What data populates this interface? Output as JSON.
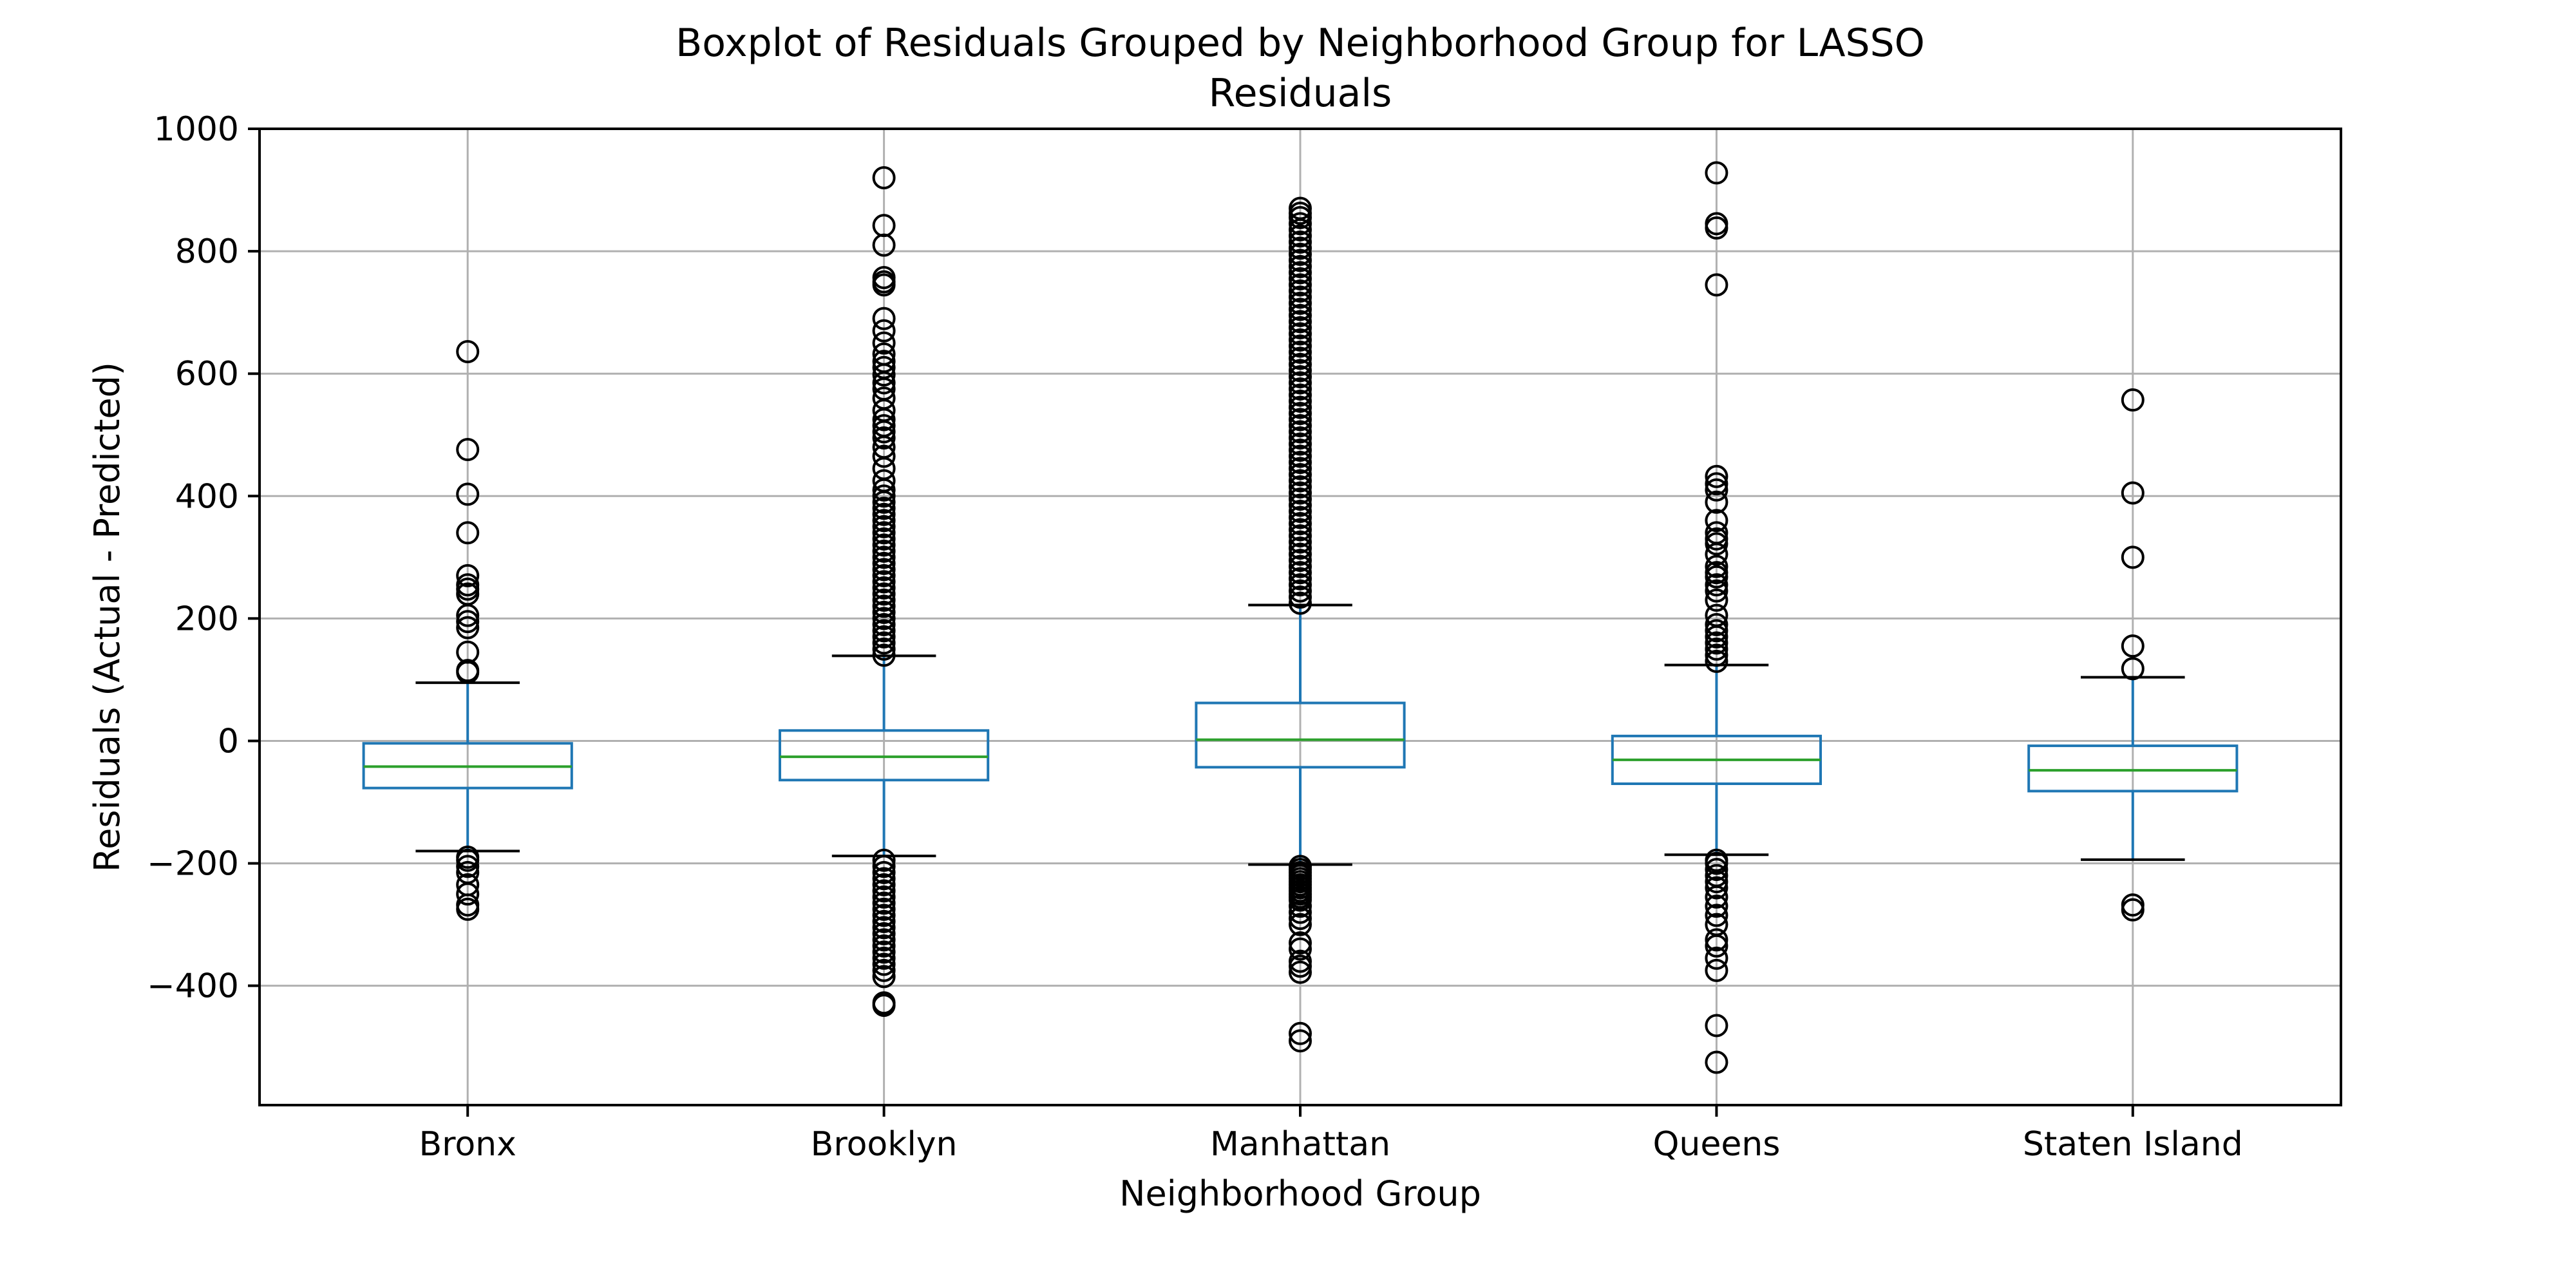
{
  "chart_data": {
    "type": "box",
    "title": "Boxplot of Residuals Grouped by Neighborhood Group for LASSO",
    "subtitle": "Residuals",
    "xlabel": "Neighborhood Group",
    "ylabel": "Residuals (Actual - Predicted)",
    "ylim": [
      -595,
      1000
    ],
    "yticks": [
      -400,
      -200,
      0,
      200,
      400,
      600,
      800,
      1000
    ],
    "ytick_labels": [
      "−400",
      "−200",
      "0",
      "200",
      "400",
      "600",
      "800",
      "1000"
    ],
    "grid": true,
    "colors": {
      "box": "#1f77b4",
      "median": "#2ca02c",
      "whisker": "#1f77b4",
      "cap": "#000000",
      "flier": "#000000"
    },
    "categories": [
      "Bronx",
      "Brooklyn",
      "Manhattan",
      "Queens",
      "Staten Island"
    ],
    "boxes": [
      {
        "name": "Bronx",
        "whisker_low": -180,
        "q1": -77,
        "median": -42,
        "q3": -4,
        "whisker_high": 95,
        "fliers": [
          636,
          476,
          403,
          340,
          270,
          255,
          248,
          240,
          205,
          195,
          185,
          145,
          115,
          112,
          -190,
          -195,
          -205,
          -215,
          -235,
          -250,
          -268,
          -275
        ]
      },
      {
        "name": "Brooklyn",
        "whisker_low": -188,
        "q1": -64,
        "median": -26,
        "q3": 17,
        "whisker_high": 139,
        "fliers": [
          920,
          842,
          810,
          757,
          750,
          745,
          690,
          670,
          650,
          632,
          620,
          610,
          598,
          585,
          575,
          560,
          540,
          525,
          515,
          505,
          495,
          480,
          465,
          445,
          425,
          410,
          400,
          390,
          380,
          370,
          360,
          350,
          340,
          330,
          320,
          310,
          300,
          290,
          280,
          270,
          260,
          250,
          240,
          230,
          220,
          210,
          200,
          190,
          180,
          170,
          160,
          150,
          140,
          -195,
          -205,
          -215,
          -225,
          -235,
          -245,
          -255,
          -265,
          -275,
          -285,
          -295,
          -305,
          -315,
          -325,
          -335,
          -345,
          -355,
          -365,
          -375,
          -385,
          -428,
          -432
        ]
      },
      {
        "name": "Manhattan",
        "whisker_low": -202,
        "q1": -43,
        "median": 2,
        "q3": 62,
        "whisker_high": 222,
        "fliers": [
          870,
          862,
          855,
          845,
          835,
          825,
          815,
          805,
          795,
          785,
          775,
          765,
          755,
          745,
          735,
          725,
          715,
          705,
          695,
          685,
          675,
          665,
          655,
          645,
          635,
          625,
          615,
          605,
          595,
          585,
          575,
          565,
          555,
          545,
          535,
          525,
          515,
          505,
          495,
          485,
          475,
          465,
          455,
          445,
          435,
          425,
          415,
          405,
          395,
          385,
          375,
          365,
          355,
          345,
          335,
          325,
          315,
          305,
          295,
          285,
          275,
          265,
          255,
          245,
          235,
          225,
          -205,
          -210,
          -215,
          -220,
          -225,
          -230,
          -235,
          -240,
          -245,
          -250,
          -255,
          -260,
          -270,
          -280,
          -290,
          -300,
          -330,
          -340,
          -360,
          -368,
          -378,
          -478,
          -490
        ]
      },
      {
        "name": "Queens",
        "whisker_low": -186,
        "q1": -70,
        "median": -31,
        "q3": 8,
        "whisker_high": 124,
        "fliers": [
          928,
          845,
          838,
          745,
          432,
          420,
          410,
          390,
          360,
          340,
          330,
          322,
          305,
          285,
          275,
          268,
          255,
          245,
          230,
          205,
          190,
          180,
          170,
          160,
          150,
          140,
          130,
          -195,
          -200,
          -210,
          -220,
          -230,
          -240,
          -255,
          -270,
          -285,
          -300,
          -325,
          -335,
          -355,
          -375,
          -465,
          -525
        ]
      },
      {
        "name": "Staten Island",
        "whisker_low": -194,
        "q1": -82,
        "median": -48,
        "q3": -8,
        "whisker_high": 104,
        "fliers": [
          557,
          405,
          300,
          155,
          118,
          -268,
          -276
        ]
      }
    ]
  }
}
